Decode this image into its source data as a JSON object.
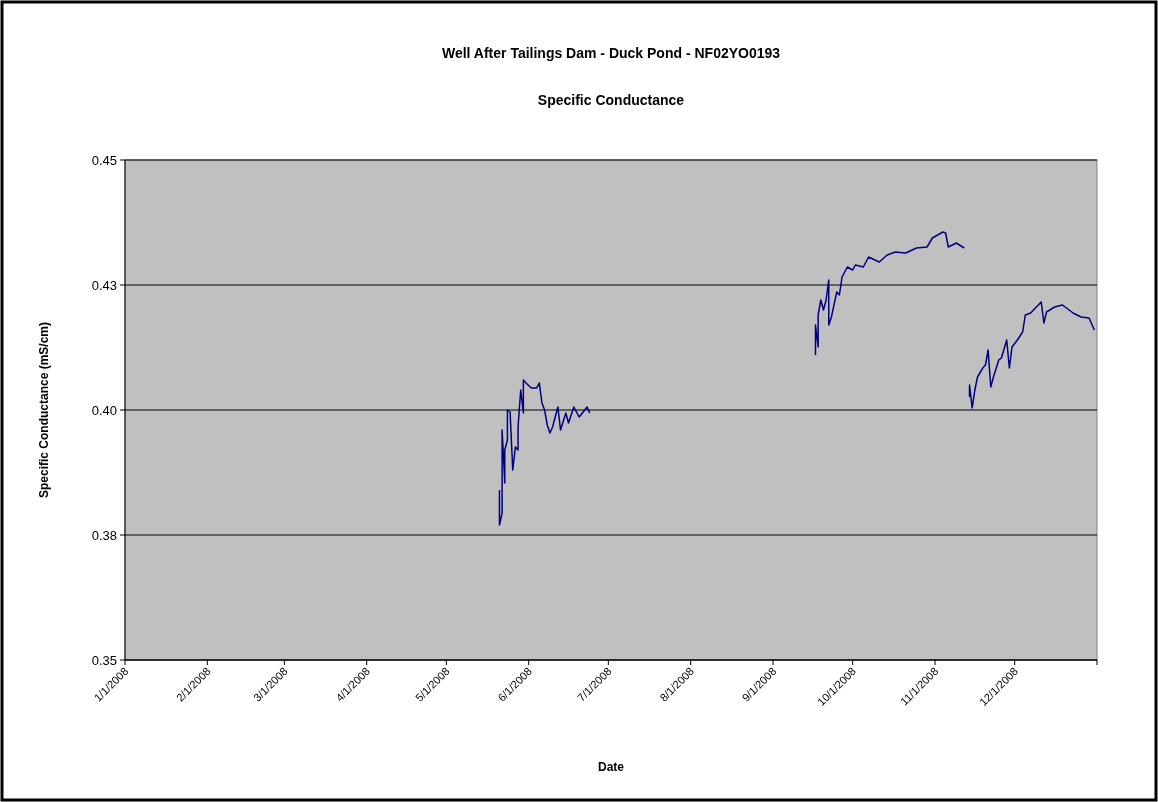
{
  "chart_data": {
    "type": "line",
    "title": "Well After Tailings Dam - Duck Pond - NF02YO0193",
    "subtitle": "Specific Conductance",
    "xlabel": "Date",
    "ylabel": "Specific Conductance (mS/cm)",
    "x": [
      "2008-05-21",
      "2008-05-21",
      "2008-05-22",
      "2008-05-22",
      "2008-05-23",
      "2008-05-23",
      "2008-05-24",
      "2008-05-24",
      "2008-05-25",
      "2008-05-26",
      "2008-05-27",
      "2008-05-28",
      "2008-05-28",
      "2008-05-29",
      "2008-05-30",
      "2008-05-30",
      "2008-05-31",
      "2008-06-02",
      "2008-06-04",
      "2008-06-05",
      "2008-06-06",
      "2008-06-07",
      "2008-06-08",
      "2008-06-09",
      "2008-06-10",
      "2008-06-12",
      "2008-06-13",
      "2008-06-15",
      "2008-06-16",
      "2008-06-18",
      "2008-06-20",
      "2008-06-23",
      "2008-06-24",
      "2008-08-01",
      "2008-09-17",
      "2008-09-17",
      "2008-09-18",
      "2008-09-18",
      "2008-09-19",
      "2008-09-20",
      "2008-09-21",
      "2008-09-22",
      "2008-09-22",
      "2008-09-23",
      "2008-09-25",
      "2008-09-26",
      "2008-09-27",
      "2008-09-29",
      "2008-10-01",
      "2008-10-02",
      "2008-10-05",
      "2008-10-07",
      "2008-10-11",
      "2008-10-14",
      "2008-10-17",
      "2008-10-21",
      "2008-10-25",
      "2008-10-29",
      "2008-10-31",
      "2008-11-04",
      "2008-11-05",
      "2008-11-06",
      "2008-11-09",
      "2008-11-12",
      "2008-11-13",
      "2008-11-14",
      "2008-11-14",
      "2008-11-15",
      "2008-11-16",
      "2008-11-17",
      "2008-11-19",
      "2008-11-20",
      "2008-11-21",
      "2008-11-22",
      "2008-11-23",
      "2008-11-25",
      "2008-11-26",
      "2008-11-28",
      "2008-11-29",
      "2008-11-30",
      "2008-12-02",
      "2008-12-04",
      "2008-12-05",
      "2008-12-07",
      "2008-12-11",
      "2008-12-12",
      "2008-12-13",
      "2008-12-16",
      "2008-12-19",
      "2008-12-23",
      "2008-12-26",
      "2008-12-29",
      "2008-12-31"
    ],
    "series": [
      {
        "color": "#000080",
        "values": [
          0.384,
          0.377,
          0.3794,
          0.396,
          0.3854,
          0.392,
          0.394,
          0.4,
          0.3996,
          0.388,
          0.3926,
          0.392,
          0.3966,
          0.404,
          0.3994,
          0.406,
          0.4054,
          0.4044,
          0.4044,
          0.4054,
          0.4014,
          0.4,
          0.397,
          0.3954,
          0.3966,
          0.4006,
          0.396,
          0.3994,
          0.3974,
          0.4006,
          0.3986,
          0.4006,
          0.3994,
          null,
          0.411,
          0.417,
          0.4126,
          0.419,
          0.422,
          0.42,
          0.422,
          0.426,
          0.417,
          0.4186,
          0.4236,
          0.423,
          0.4266,
          0.4286,
          0.428,
          0.429,
          0.4286,
          0.4306,
          0.4296,
          0.431,
          0.4316,
          0.4314,
          0.4324,
          0.4326,
          0.4344,
          0.4356,
          0.4354,
          0.4326,
          0.4334,
          0.4324,
          null,
          0.4026,
          0.405,
          0.4004,
          0.404,
          0.4066,
          0.4084,
          0.409,
          0.412,
          0.4046,
          0.4066,
          0.41,
          0.4104,
          0.414,
          0.4084,
          0.4126,
          0.414,
          0.4156,
          0.419,
          0.4194,
          0.4216,
          0.4174,
          0.4196,
          0.4206,
          0.421,
          0.4194,
          0.4186,
          0.4184,
          0.416
        ]
      }
    ],
    "xlim": [
      "2008-01-01",
      "2009-01-01"
    ],
    "xticks": [
      {
        "value": "2008-01-01",
        "label": "1/1/2008"
      },
      {
        "value": "2008-02-01",
        "label": "2/1/2008"
      },
      {
        "value": "2008-03-01",
        "label": "3/1/2008"
      },
      {
        "value": "2008-04-01",
        "label": "4/1/2008"
      },
      {
        "value": "2008-05-01",
        "label": "5/1/2008"
      },
      {
        "value": "2008-06-01",
        "label": "6/1/2008"
      },
      {
        "value": "2008-07-01",
        "label": "7/1/2008"
      },
      {
        "value": "2008-08-01",
        "label": "8/1/2008"
      },
      {
        "value": "2008-09-01",
        "label": "9/1/2008"
      },
      {
        "value": "2008-10-01",
        "label": "10/1/2008"
      },
      {
        "value": "2008-11-01",
        "label": "11/1/2008"
      },
      {
        "value": "2008-12-01",
        "label": "12/1/2008"
      },
      {
        "value": "2009-01-01",
        "label": null
      }
    ],
    "ylim": [
      0.35,
      0.45
    ],
    "yticks": [
      {
        "value": 0.35,
        "label": "0.35"
      },
      {
        "value": 0.375,
        "label": "0.38"
      },
      {
        "value": 0.4,
        "label": "0.40"
      },
      {
        "value": 0.425,
        "label": "0.43"
      },
      {
        "value": 0.45,
        "label": "0.45"
      }
    ],
    "grid": "y",
    "marker": "none",
    "line_style": "solid"
  }
}
